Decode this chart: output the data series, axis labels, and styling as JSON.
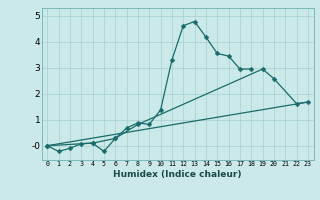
{
  "xlabel": "Humidex (Indice chaleur)",
  "bg_color": "#cce9e9",
  "grid_color": "#aad4d4",
  "line_color": "#1a6b6b",
  "xlim": [
    -0.5,
    23.5
  ],
  "ylim": [
    -0.55,
    5.3
  ],
  "yticks": [
    0,
    1,
    2,
    3,
    4,
    5
  ],
  "ytick_labels": [
    "-0",
    "1",
    "2",
    "3",
    "4",
    "5"
  ],
  "xticks": [
    0,
    1,
    2,
    3,
    4,
    5,
    6,
    7,
    8,
    9,
    10,
    11,
    12,
    13,
    14,
    15,
    16,
    17,
    18,
    19,
    20,
    21,
    22,
    23
  ],
  "line1_x": [
    0,
    1,
    2,
    3,
    4,
    5,
    6,
    7,
    8,
    9,
    10,
    11,
    12,
    13,
    14,
    15,
    16,
    17,
    18
  ],
  "line1_y": [
    0.0,
    -0.22,
    -0.1,
    0.08,
    0.1,
    -0.22,
    0.28,
    0.68,
    0.88,
    0.82,
    1.38,
    3.3,
    4.62,
    4.78,
    4.18,
    3.55,
    3.45,
    2.95,
    2.95
  ],
  "line2_x": [
    0,
    4,
    6,
    8,
    19,
    20,
    22,
    23
  ],
  "line2_y": [
    0.0,
    0.1,
    0.28,
    0.82,
    2.95,
    2.58,
    1.62,
    1.68
  ],
  "line3_x": [
    0,
    23
  ],
  "line3_y": [
    0.0,
    1.68
  ],
  "marker_size": 2.5
}
